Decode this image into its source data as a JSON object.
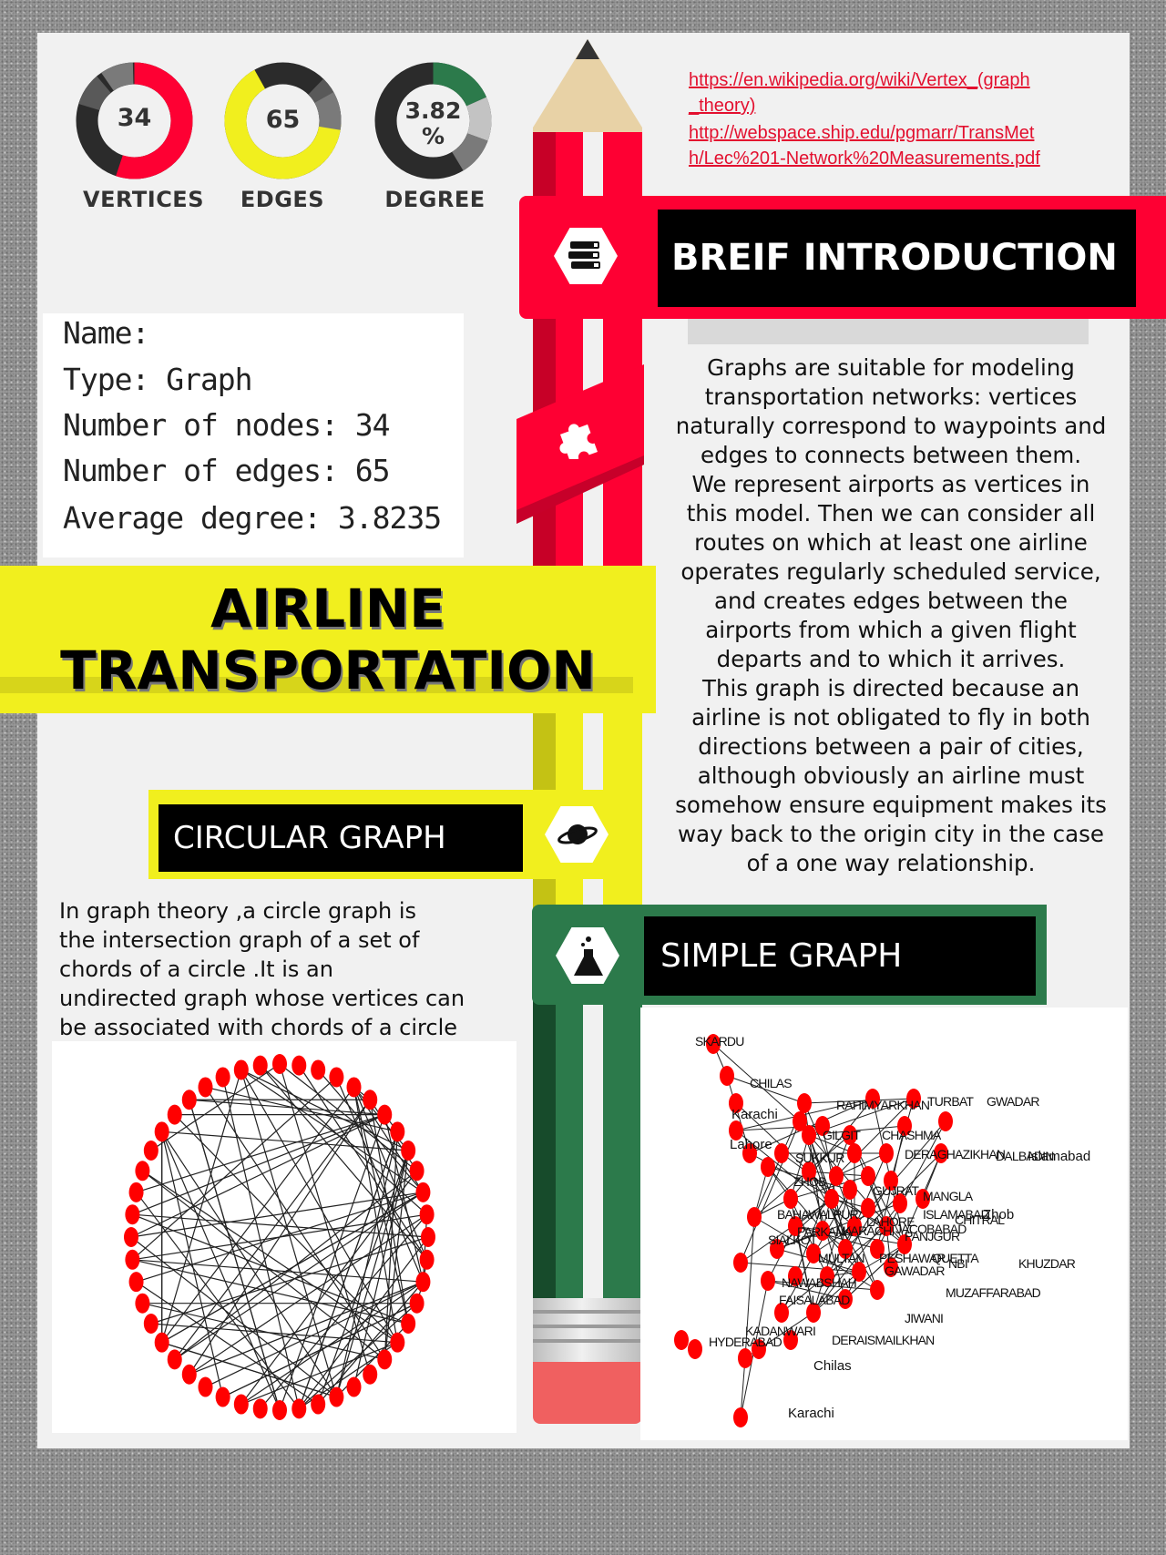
{
  "stats": [
    {
      "value": "34",
      "label": "VERTICES",
      "fg": "#fe0033",
      "bg": "#2b2b2b"
    },
    {
      "value": "65",
      "label": "EDGES",
      "fg": "#f1ef1e",
      "bg": "#2b2b2b"
    },
    {
      "value": "3.82\n%",
      "label": "DEGREE",
      "fg": "#2c7a4b",
      "bg": "#2b2b2b"
    }
  ],
  "links": [
    "https://en.wikipedia.org/wiki/Vertex_(graph",
    "_theory)",
    "http://webspace.ship.edu/pgmarr/TransMet",
    "h/Lec%201-Network%20Measurements.pdf"
  ],
  "info": {
    "name": "Name:",
    "type": "Type: Graph",
    "nodes": "Number of nodes: 34",
    "edges": "Number of edges: 65",
    "degree": "Average degree:   3.8235"
  },
  "title": {
    "line1": "AIRLINE",
    "line2": "TRANSPORTATION"
  },
  "sections": {
    "intro": "BREIF INTRODUCTION",
    "circular": "CIRCULAR GRAPH",
    "simple": "SIMPLE GRAPH"
  },
  "intro_text": [
    "Graphs are suitable for modeling",
    "transportation networks: vertices",
    "naturally correspond to waypoints and",
    "edges to connects between them.",
    "We represent airports as vertices in",
    "this model. Then we can consider all",
    "routes on which at least one airline",
    "operates regularly scheduled service,",
    "and creates edges between the",
    "airports from which a given flight",
    "departs and to which it arrives.",
    "This graph is  directed because  an",
    "airline is not obligated to fly in both",
    "directions between a pair of cities,",
    "although obviously an airline must",
    "somehow ensure equipment makes its",
    "way back to the origin city in the case",
    "of a one way relationship."
  ],
  "circular_text": [
    "In graph theory ,a circle graph is",
    "the intersection graph of a set of",
    "chords of a circle .It is an",
    "undirected graph whose vertices can",
    "be associated with chords of a circle"
  ],
  "simple_graph_labels": [
    "SKARDU",
    "CHILAS",
    "Karachi",
    "Lahore",
    "RAHIMYARKHAN",
    "TURBAT",
    "GWADAR",
    "GILGIT",
    "CHASHMA",
    "SUKKUR",
    "DERAGHAZIKHAN",
    "DALBADIN",
    "Islamabad",
    "ZHOB",
    "GUJRAT",
    "MANGLA",
    "Zhob",
    "BAHAWALPUR",
    "ISLAMABAD",
    "CHITRAL",
    "SIALKOT",
    "PARKANA",
    "KARACHI",
    "LAHORE",
    "PANJGUR",
    "JACOBABAD",
    "MULTAN",
    "PESHAWAR",
    "QUETTA",
    "NBI",
    "KHUZDAR",
    "NAWABSHAH",
    "GAWADAR",
    "FAISALABAD",
    "MUZAFFARABAD",
    "JIWANI",
    "KADANWARI",
    "HYDERABAD",
    "DERAISMAILKHAN",
    "Chilas",
    "Karachi"
  ],
  "colors": {
    "red": "#fe0033",
    "yellow": "#f1ef1e",
    "green": "#2c7a4b",
    "node": "#ff0000"
  },
  "icons": {
    "intro": "books-icon",
    "puzzle": "puzzle-icon",
    "circular": "planet-icon",
    "simple": "flask-icon"
  }
}
